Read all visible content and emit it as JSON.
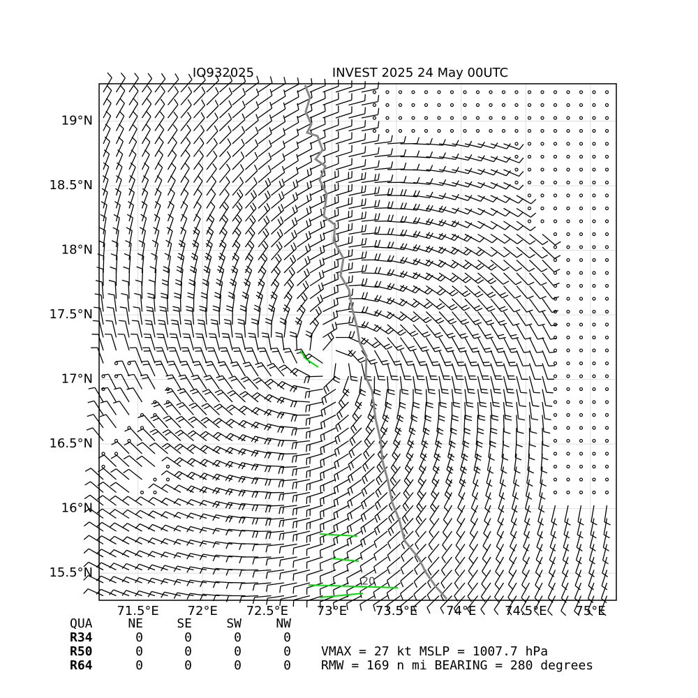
{
  "chart_data": {
    "type": "wind-barb-map",
    "title_left": "IO932025",
    "title_right": "INVEST 2025 24 May 00UTC",
    "xlim": [
      71.2,
      75.2
    ],
    "ylim": [
      15.29,
      19.29
    ],
    "xticks": [
      {
        "value": 71.5,
        "label": "71.5°E"
      },
      {
        "value": 72,
        "label": "72°E"
      },
      {
        "value": 72.5,
        "label": "72.5°E"
      },
      {
        "value": 73,
        "label": "73°E"
      },
      {
        "value": 73.5,
        "label": "73.5°E"
      },
      {
        "value": 74,
        "label": "74°E"
      },
      {
        "value": 74.5,
        "label": "74.5°E"
      },
      {
        "value": 75,
        "label": "75°E"
      }
    ],
    "yticks": [
      {
        "value": 15.5,
        "label": "15.5°N"
      },
      {
        "value": 16,
        "label": "16°N"
      },
      {
        "value": 16.5,
        "label": "16.5°N"
      },
      {
        "value": 17,
        "label": "17°N"
      },
      {
        "value": 17.5,
        "label": "17.5°N"
      },
      {
        "value": 18,
        "label": "18°N"
      },
      {
        "value": 18.5,
        "label": "18.5°N"
      },
      {
        "value": 19,
        "label": "19°N"
      }
    ],
    "grid": true,
    "contour_label": "20",
    "table": {
      "header": [
        "QUA",
        "NE",
        "SE",
        "SW",
        "NW"
      ],
      "rows": [
        [
          "R34",
          "0",
          "0",
          "0",
          "0"
        ],
        [
          "R50",
          "0",
          "0",
          "0",
          "0"
        ],
        [
          "R64",
          "0",
          "0",
          "0",
          "0"
        ]
      ]
    },
    "info_lines": [
      "VMAX =  27 kt MSLP = 1007.7 hPa",
      "RMW = 169 n mi BEARING = 280 degrees"
    ]
  }
}
